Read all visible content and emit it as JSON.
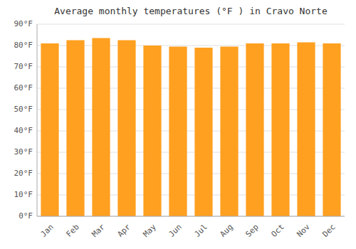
{
  "chart_data": {
    "type": "bar",
    "title": "Average monthly temperatures (°F ) in Cravo Norte",
    "categories": [
      "Jan",
      "Feb",
      "Mar",
      "Apr",
      "May",
      "Jun",
      "Jul",
      "Aug",
      "Sep",
      "Oct",
      "Nov",
      "Dec"
    ],
    "values": [
      81,
      82.5,
      83.5,
      82.5,
      80,
      79.5,
      79,
      79.5,
      81,
      81,
      81.5,
      81
    ],
    "color": "#FFA020",
    "ylim": [
      0,
      90
    ],
    "yticks": [
      {
        "value": 0,
        "label": "0°F"
      },
      {
        "value": 10,
        "label": "10°F"
      },
      {
        "value": 20,
        "label": "20°F"
      },
      {
        "value": 30,
        "label": "30°F"
      },
      {
        "value": 40,
        "label": "40°F"
      },
      {
        "value": 50,
        "label": "50°F"
      },
      {
        "value": 60,
        "label": "60°F"
      },
      {
        "value": 70,
        "label": "70°F"
      },
      {
        "value": 80,
        "label": "80°F"
      },
      {
        "value": 90,
        "label": "90°F"
      }
    ],
    "grid": true
  }
}
